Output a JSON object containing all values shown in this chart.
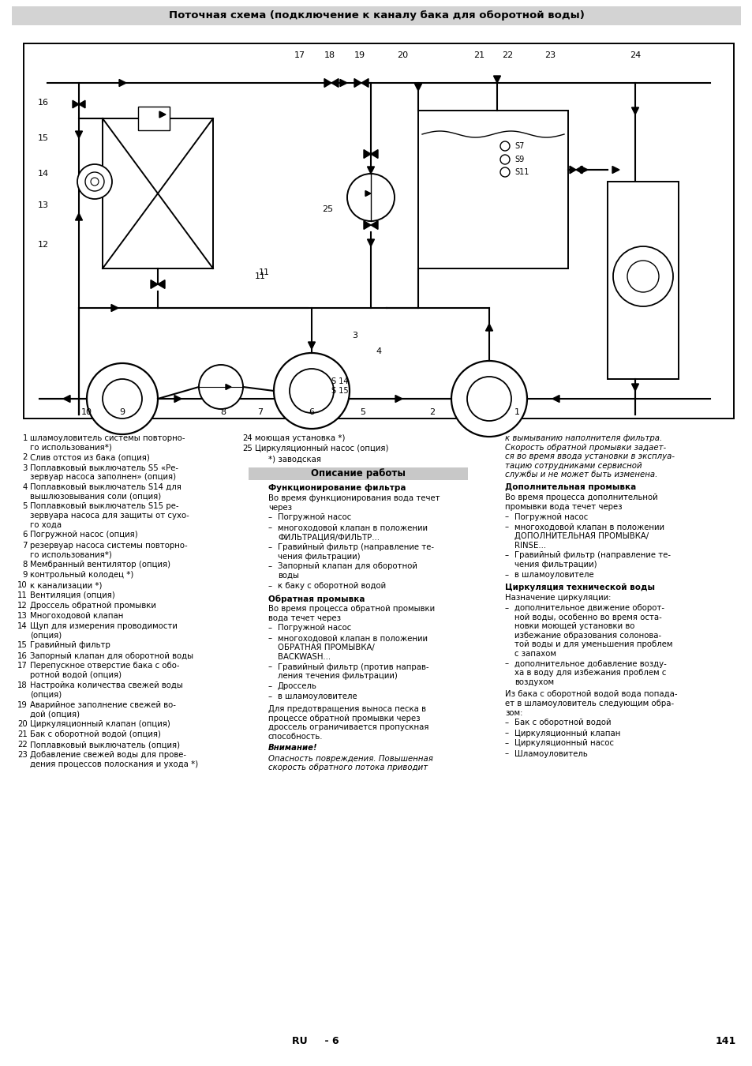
{
  "title": "Поточная схема (подключение к каналу бака для оборотной воды)",
  "page_number": "141",
  "page_label": "RU     - 6",
  "bg_color": "#ffffff",
  "header_bg": "#d0d0d0",
  "section_header_bg": "#c8c8c8",
  "left_col": [
    [
      "1",
      "шламоуловитель системы повторно-\nго использования*)"
    ],
    [
      "2",
      "Слив отстоя из бака (опция)"
    ],
    [
      "3",
      "Поплавковый выключатель S5 «Ре-\nзервуар насоса заполнен» (опция)"
    ],
    [
      "4",
      "Поплавковый выключатель S14 для\nвышлюзовывания соли (опция)"
    ],
    [
      "5",
      "Поплавковый выключатель S15 ре-\nзервуара насоса для защиты от сухо-\nго хода"
    ],
    [
      "6",
      "Погружной насос (опция)"
    ],
    [
      "7",
      "резервуар насоса системы повторно-\nго использования*)"
    ],
    [
      "8",
      "Мембранный вентилятор (опция)"
    ],
    [
      "9",
      "контрольный колодец *)"
    ],
    [
      "10",
      "к канализации *)"
    ],
    [
      "11",
      "Вентиляция (опция)"
    ],
    [
      "12",
      "Дроссель обратной промывки"
    ],
    [
      "13",
      "Многоходовой клапан"
    ],
    [
      "14",
      "Щуп для измерения проводимости\n(опция)"
    ],
    [
      "15",
      "Гравийный фильтр"
    ],
    [
      "16",
      "Запорный клапан для оборотной воды"
    ],
    [
      "17",
      "Перепускное отверстие бака с обо-\nротной водой (опция)"
    ],
    [
      "18",
      "Настройка количества свежей воды\n(опция)"
    ],
    [
      "19",
      "Аварийное заполнение свежей во-\nдой (опция)"
    ],
    [
      "20",
      "Циркуляционный клапан (опция)"
    ],
    [
      "21",
      "Бак с оборотной водой (опция)"
    ],
    [
      "22",
      "Поплавковый выключатель (опция)"
    ],
    [
      "23",
      "Добавление свежей воды для прове-\nдения процессов полоскания и ухода *)"
    ]
  ],
  "mid_col_top": [
    [
      "24",
      "моющая установка *)"
    ],
    [
      "25",
      "Циркуляционный насос (опция)"
    ],
    [
      "",
      "*) заводская"
    ]
  ],
  "section_title": "Описание работы",
  "sub1_title": "Функционирование фильтра",
  "sub1_text": "Во время функционирования вода течет\nчерез",
  "sub1_bullets": [
    "Погружной насос",
    "многоходовой клапан в положении\nФИЛЬТРАЦИЯ/ФИЛЬТР...",
    "Гравийный фильтр (направление те-\nчения фильтрации)",
    "Запорный клапан для оборотной\nводы",
    "к баку с оборотной водой"
  ],
  "sub2_title": "Обратная промывка",
  "sub2_text": "Во время процесса обратной промывки\nвода течет через",
  "sub2_bullets": [
    "Погружной насос",
    "многоходовой клапан в положении\nОБРАТНАЯ ПРОМЫВКА/\nBACKWASH...",
    "Гравийный фильтр (против направ-\nления течения фильтрации)",
    "Дроссель",
    "в шламоуловителе"
  ],
  "sub2_extra": "Для предотвращения выноса песка в\nпроцессе обратной промывки через\nдроссель ограничивается пропускная\nспособность.",
  "warn_title": "Внимание!",
  "warn_text": "Опасность повреждения. Повышенная\nскорость обратного потока приводит",
  "right_italic": "к вымыванию наполнителя фильтра.\nСкорость обратной промывки задает-\nся во время ввода установки в эксплуа-\nтацию сотрудниками сервисной\nслужбы и не может быть изменена.",
  "sub3_title": "Дополнительная промывка",
  "sub3_text": "Во время процесса дополнительной\nпромывки вода течет через",
  "sub3_bullets": [
    "Погружной насос",
    "многоходовой клапан в положении\nДОПОЛНИТЕЛЬНАЯ ПРОМЫВКА/\nRINSE...",
    "Гравийный фильтр (направление те-\nчения фильтрации)",
    "в шламоуловителе"
  ],
  "sub4_title": "Циркуляция технической воды",
  "sub4_intro": "Назначение циркуляции:",
  "sub4_bullets": [
    "дополнительное движение оборот-\nной воды, особенно во время оста-\nновки моющей установки во\nизбежание образования солонова-\nтой воды и для уменьшения проблем\nс запахом",
    "дополнительное добавление возду-\nха в воду для избежания проблем с\nвоздухом"
  ],
  "sub4_text2": "Из бака с оборотной водой вода попада-\nет в шламоуловитель следующим обра-\nзом:",
  "sub4_final": [
    "Бак с оборотной водой",
    "Циркуляционный клапан",
    "Циркуляционный насос",
    "Шламоуловитель"
  ]
}
